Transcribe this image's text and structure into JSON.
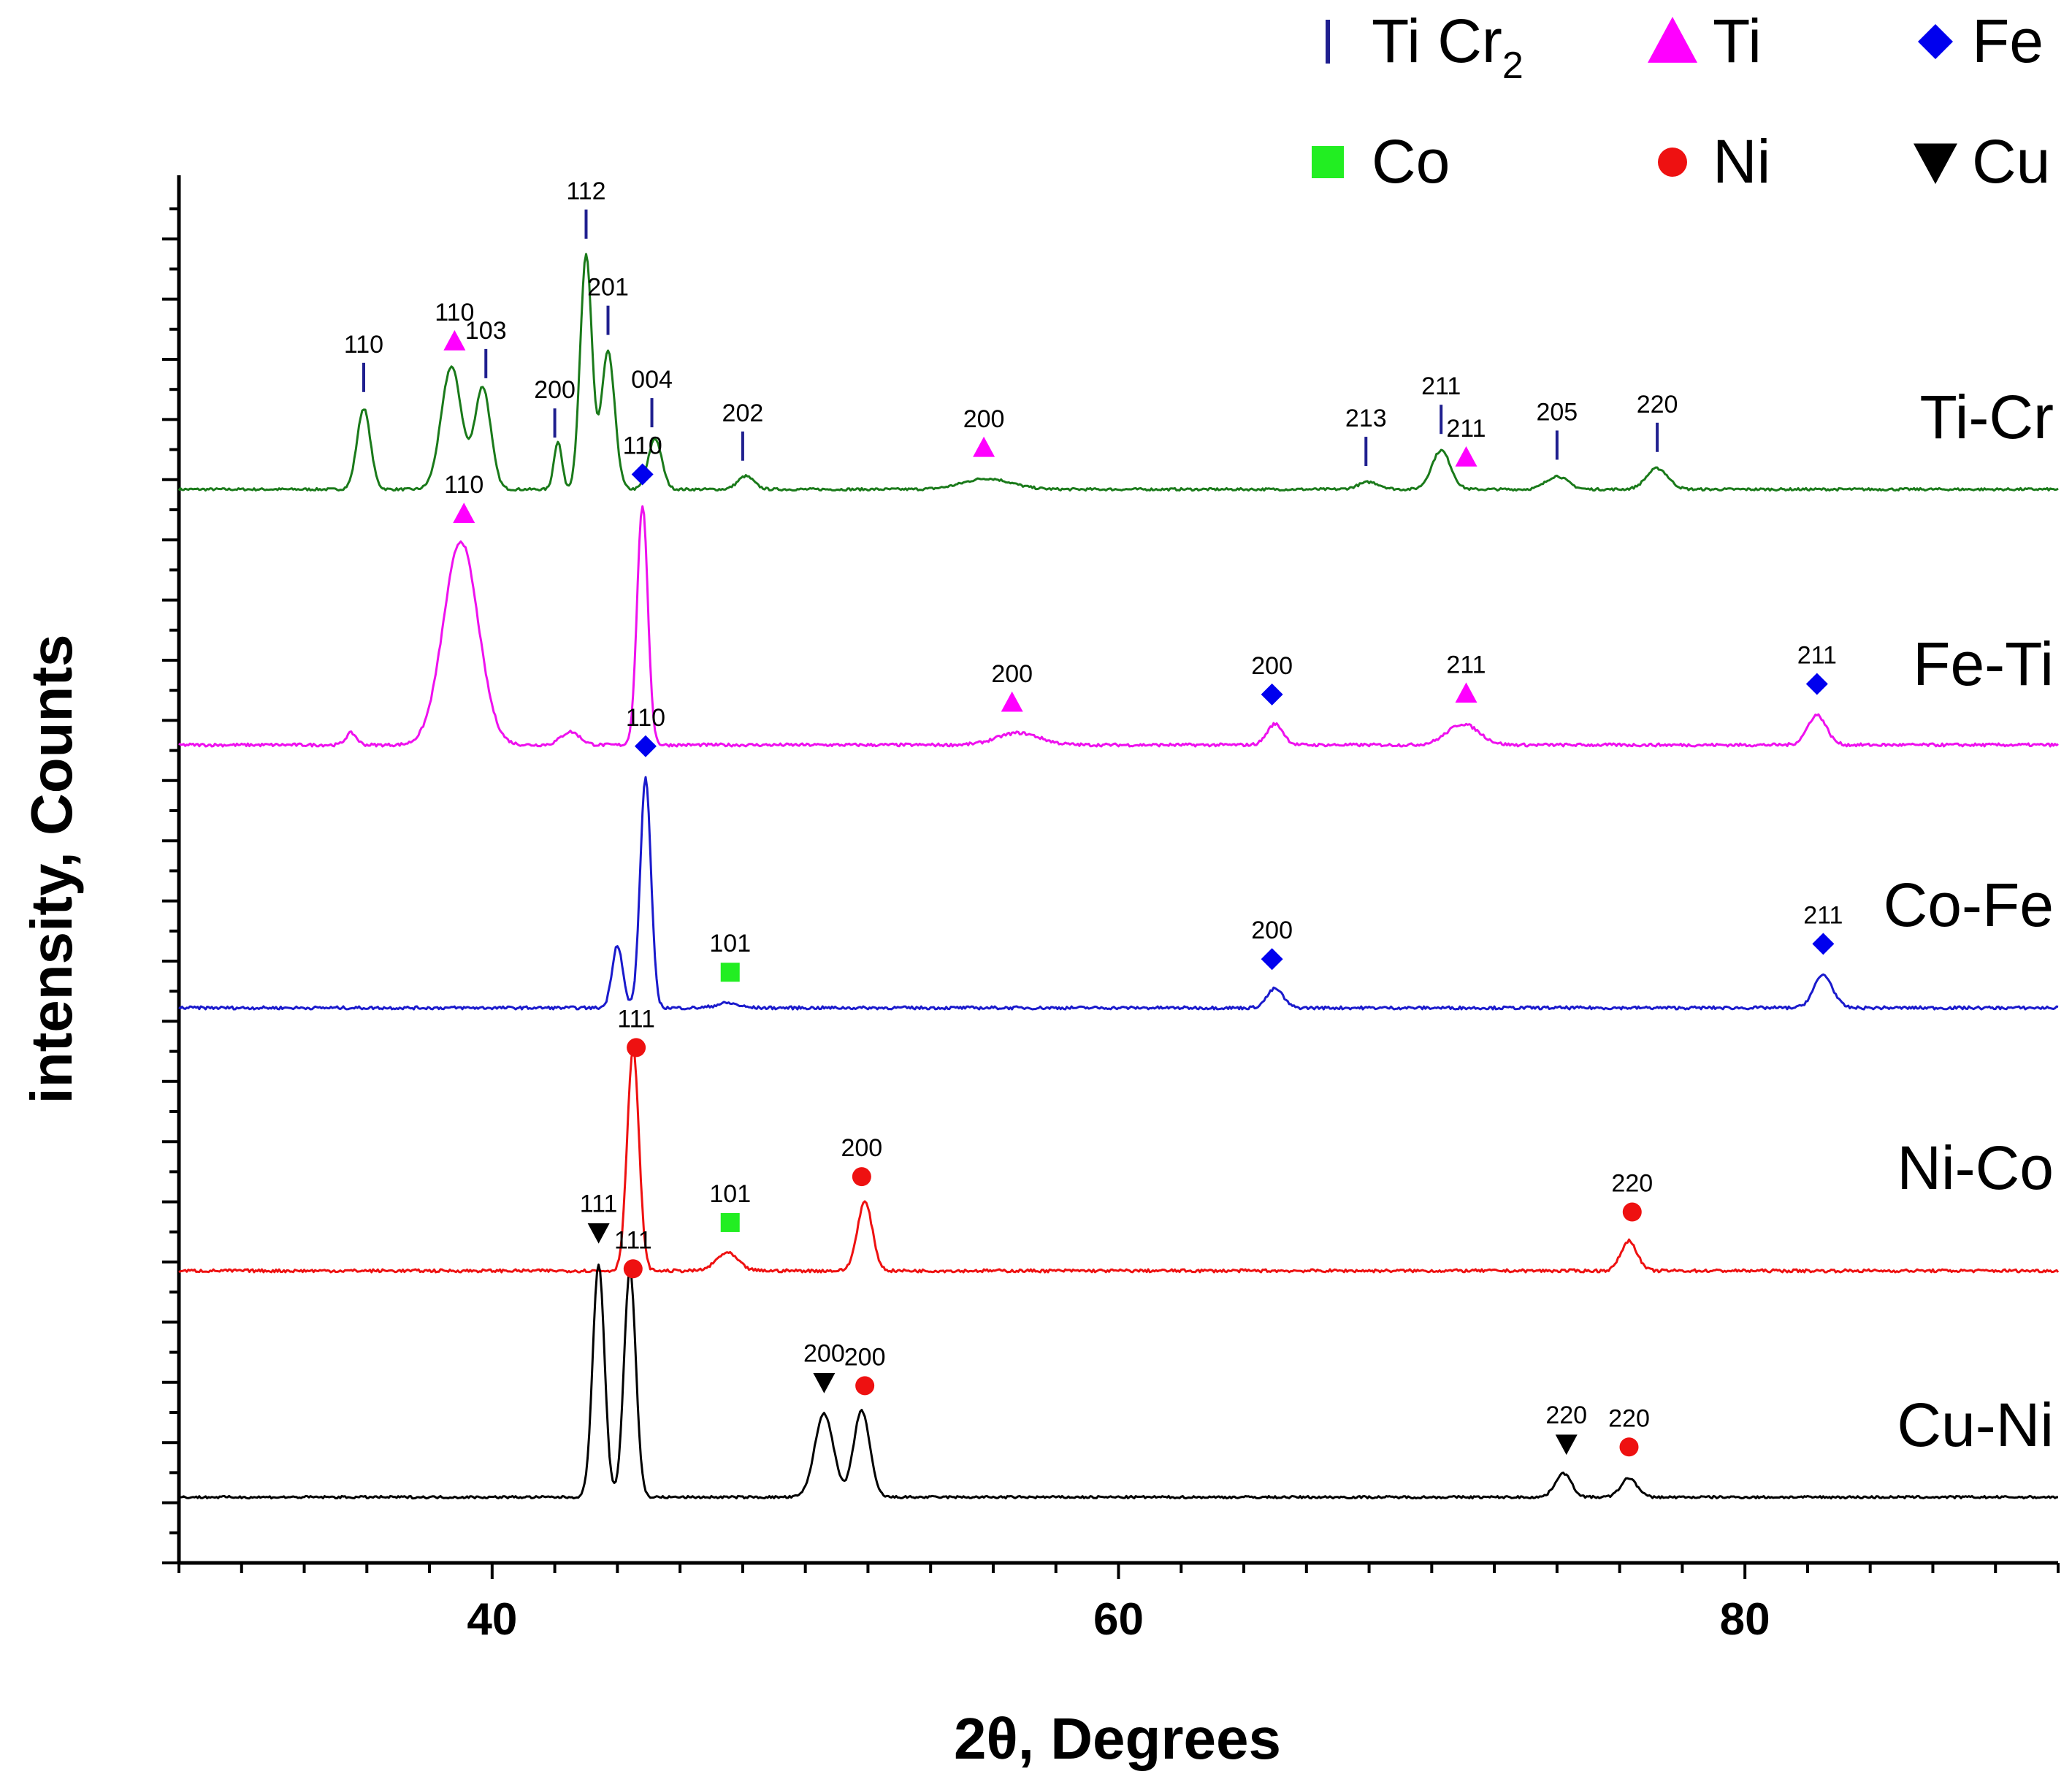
{
  "chart_data": {
    "type": "line",
    "xlabel": "2θ, Degrees",
    "ylabel": "intensity, Counts",
    "xlim": [
      30,
      90
    ],
    "x_ticks": [
      40,
      60,
      80
    ],
    "grid": false,
    "y_tick_labels_shown": false,
    "legend": {
      "placement": "top-right",
      "entries": [
        {
          "marker": "bar",
          "name": "Ti Cr",
          "subscript": "2",
          "color": "#1f1f8f"
        },
        {
          "marker": "triangle",
          "name": "Ti",
          "color": "#ff00ff"
        },
        {
          "marker": "diamond",
          "name": "Fe",
          "color": "#0000ee"
        },
        {
          "marker": "square",
          "name": "Co",
          "color": "#22ee22"
        },
        {
          "marker": "circle",
          "name": "Ni",
          "color": "#ee1111"
        },
        {
          "marker": "triangle-down",
          "name": "Cu",
          "color": "#000000"
        }
      ]
    },
    "series": [
      {
        "name": "Ti-Cr",
        "color": "#1a7a1a",
        "baseline": 0.91,
        "peaks": [
          [
            35.9,
            1.35,
            0.25
          ],
          [
            38.7,
            2.05,
            0.38
          ],
          [
            39.7,
            1.7,
            0.3
          ],
          [
            42.1,
            0.8,
            0.15
          ],
          [
            43.0,
            3.9,
            0.22
          ],
          [
            43.7,
            2.3,
            0.25
          ],
          [
            45.2,
            0.85,
            0.25
          ],
          [
            48.1,
            0.22,
            0.3
          ],
          [
            55.8,
            0.18,
            0.9
          ],
          [
            68.0,
            0.12,
            0.4
          ],
          [
            70.3,
            0.65,
            0.35
          ],
          [
            74.0,
            0.22,
            0.4
          ],
          [
            77.2,
            0.35,
            0.4
          ]
        ],
        "noise": 0.02,
        "annotations": [
          {
            "x": 35.9,
            "marker": "bar",
            "label": "110"
          },
          {
            "x": 38.8,
            "marker": "triangle",
            "label": "110"
          },
          {
            "x": 39.8,
            "marker": "bar",
            "label": "103"
          },
          {
            "x": 42.0,
            "marker": "bar",
            "label": "200"
          },
          {
            "x": 43.0,
            "marker": "bar",
            "label": "112"
          },
          {
            "x": 43.7,
            "marker": "bar",
            "label": "201"
          },
          {
            "x": 45.1,
            "marker": "bar",
            "label": "004"
          },
          {
            "x": 48.0,
            "marker": "bar",
            "label": "202"
          },
          {
            "x": 55.7,
            "marker": "triangle",
            "label": "200"
          },
          {
            "x": 67.9,
            "marker": "bar",
            "label": "213"
          },
          {
            "x": 70.3,
            "marker": "bar",
            "label": "211"
          },
          {
            "x": 71.1,
            "marker": "triangle",
            "label": "211"
          },
          {
            "x": 74.0,
            "marker": "bar",
            "label": "205"
          },
          {
            "x": 77.2,
            "marker": "bar",
            "label": "220"
          }
        ]
      },
      {
        "name": "Fe-Ti",
        "color": "#ee11ee",
        "baseline": 0.91,
        "peaks": [
          [
            35.5,
            0.2,
            0.2
          ],
          [
            39.0,
            3.4,
            0.65
          ],
          [
            42.5,
            0.22,
            0.35
          ],
          [
            44.8,
            4.0,
            0.2
          ],
          [
            56.8,
            0.2,
            0.8
          ],
          [
            65.0,
            0.35,
            0.3
          ],
          [
            71.0,
            0.35,
            0.6
          ],
          [
            82.3,
            0.5,
            0.35
          ]
        ],
        "noise": 0.025,
        "annotations": [
          {
            "x": 39.1,
            "marker": "triangle",
            "label": "110"
          },
          {
            "x": 44.8,
            "marker": "diamond",
            "label": "110"
          },
          {
            "x": 56.6,
            "marker": "triangle",
            "label": "200"
          },
          {
            "x": 64.9,
            "marker": "diamond",
            "label": "200"
          },
          {
            "x": 71.1,
            "marker": "triangle",
            "label": "211"
          },
          {
            "x": 82.3,
            "marker": "diamond",
            "label": "211"
          }
        ]
      },
      {
        "name": "Co-Fe",
        "color": "#1a1acc",
        "baseline": 0.91,
        "peaks": [
          [
            44.0,
            1.05,
            0.2
          ],
          [
            44.9,
            3.85,
            0.2
          ],
          [
            47.5,
            0.08,
            0.4
          ],
          [
            65.0,
            0.32,
            0.3
          ],
          [
            82.5,
            0.55,
            0.35
          ]
        ],
        "noise": 0.025,
        "annotations": [
          {
            "x": 44.9,
            "marker": "diamond",
            "label": "110"
          },
          {
            "x": 47.6,
            "marker": "square",
            "label": "101"
          },
          {
            "x": 64.9,
            "marker": "diamond",
            "label": "200"
          },
          {
            "x": 82.5,
            "marker": "diamond",
            "label": "211"
          }
        ]
      },
      {
        "name": "Ni-Co",
        "color": "#ee1111",
        "baseline": 0.91,
        "peaks": [
          [
            44.5,
            3.7,
            0.22
          ],
          [
            47.5,
            0.3,
            0.4
          ],
          [
            51.9,
            1.15,
            0.28
          ],
          [
            76.3,
            0.5,
            0.3
          ]
        ],
        "noise": 0.025,
        "annotations": [
          {
            "x": 44.6,
            "marker": "circle",
            "label": "111"
          },
          {
            "x": 47.6,
            "marker": "square",
            "label": "101"
          },
          {
            "x": 51.8,
            "marker": "circle",
            "label": "200"
          },
          {
            "x": 76.4,
            "marker": "circle",
            "label": "220"
          }
        ]
      },
      {
        "name": "Cu-Ni",
        "color": "#000000",
        "baseline": 0.1,
        "peaks": [
          [
            43.4,
            3.9,
            0.22
          ],
          [
            44.4,
            3.8,
            0.22
          ],
          [
            50.6,
            1.4,
            0.35
          ],
          [
            51.8,
            1.45,
            0.3
          ],
          [
            74.2,
            0.4,
            0.3
          ],
          [
            76.3,
            0.32,
            0.3
          ]
        ],
        "noise": 0.02,
        "annotations": [
          {
            "x": 43.4,
            "marker": "triangle-down",
            "label": "111"
          },
          {
            "x": 44.5,
            "marker": "circle",
            "label": "111"
          },
          {
            "x": 50.6,
            "marker": "triangle-down",
            "label": "200"
          },
          {
            "x": 51.9,
            "marker": "circle",
            "label": "200"
          },
          {
            "x": 74.3,
            "marker": "triangle-down",
            "label": "220"
          },
          {
            "x": 76.3,
            "marker": "circle",
            "label": "220"
          }
        ]
      }
    ]
  }
}
